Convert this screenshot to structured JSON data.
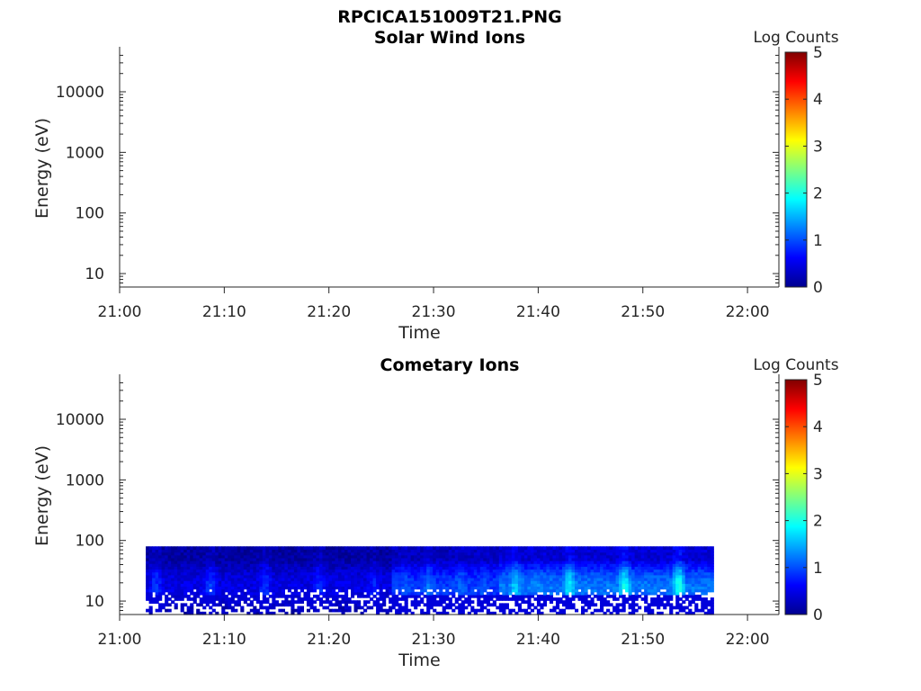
{
  "figure_title": "RPCICA151009T21.PNG",
  "chart_data": [
    {
      "type": "heatmap",
      "title": "Solar Wind Ions",
      "xlabel": "Time",
      "ylabel": "Energy (eV)",
      "x_range": [
        "21:00",
        "22:03"
      ],
      "x_ticks": [
        "21:00",
        "21:10",
        "21:20",
        "21:30",
        "21:40",
        "21:50",
        "22:00"
      ],
      "y_scale": "log",
      "y_range": [
        6,
        45000
      ],
      "y_ticks": [
        "10",
        "100",
        "1000",
        "10000"
      ],
      "colorbar": {
        "label": "Log Counts",
        "min": 0,
        "max": 5,
        "ticks": [
          "0",
          "1",
          "2",
          "3",
          "4",
          "5"
        ],
        "colormap": "jet"
      },
      "data": []
    },
    {
      "type": "heatmap",
      "title": "Cometary Ions",
      "xlabel": "Time",
      "ylabel": "Energy (eV)",
      "x_range": [
        "21:00",
        "22:03"
      ],
      "x_ticks": [
        "21:00",
        "21:10",
        "21:20",
        "21:30",
        "21:40",
        "21:50",
        "22:00"
      ],
      "y_scale": "log",
      "y_range": [
        6,
        45000
      ],
      "y_ticks": [
        "10",
        "100",
        "1000",
        "10000"
      ],
      "colorbar": {
        "label": "Log Counts",
        "min": 0,
        "max": 5,
        "ticks": [
          "0",
          "1",
          "2",
          "3",
          "4",
          "5"
        ],
        "colormap": "jet"
      },
      "data_extent": {
        "time_start": "21:02:30",
        "time_end": "21:56:45",
        "energy_min_eV": 6,
        "energy_max_eV": 80
      },
      "segments": [
        {
          "time_start": "21:02:30",
          "time_end": "21:26:00",
          "log_counts_typical": 0.5,
          "log_counts_peak": 0.9
        },
        {
          "time_start": "21:26:00",
          "time_end": "21:36:00",
          "log_counts_typical": 0.9,
          "log_counts_peak": 1.6
        },
        {
          "time_start": "21:36:00",
          "time_end": "21:56:45",
          "log_counts_typical": 1.2,
          "log_counts_peak": 2.0
        }
      ]
    }
  ]
}
